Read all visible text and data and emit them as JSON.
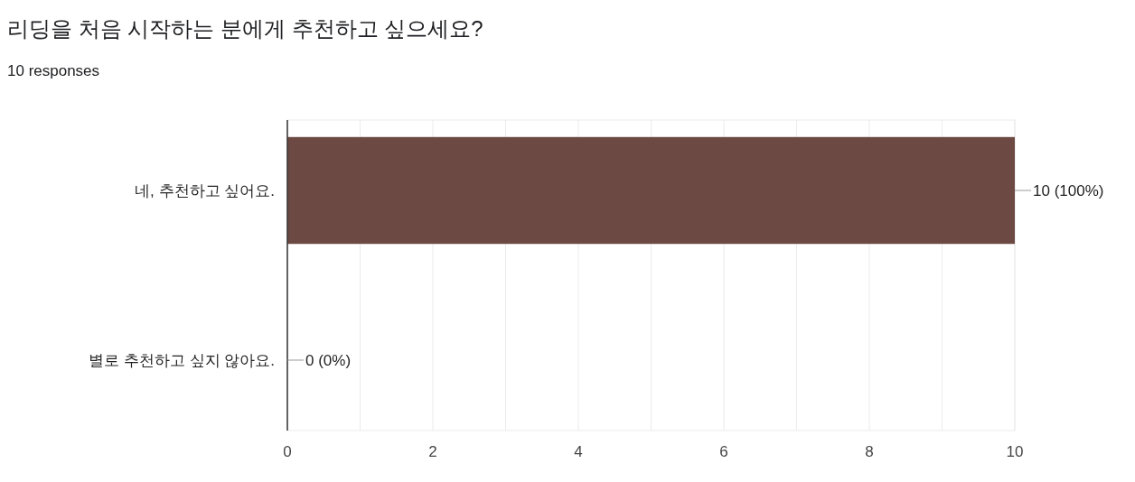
{
  "chart_data": {
    "type": "bar",
    "orientation": "horizontal",
    "title": "리딩을 처음 시작하는 분에게 추천하고 싶으세요?",
    "subtitle": "10 responses",
    "categories": [
      "네, 추천하고 싶어요.",
      "별로 추천하고 싶지 않아요."
    ],
    "values": [
      10,
      0
    ],
    "color": "#6d4943",
    "value_labels": [
      "10 (100%)",
      "0 (0%)"
    ],
    "xlim": [
      0,
      10
    ],
    "xticks": [
      0,
      {
        "value": 1,
        "label": null
      },
      2,
      {
        "value": 3,
        "label": null
      },
      4,
      {
        "value": 5,
        "label": null
      },
      6,
      {
        "value": 7,
        "label": null
      },
      8,
      {
        "value": 9,
        "label": null
      },
      10
    ],
    "grid": "x"
  }
}
